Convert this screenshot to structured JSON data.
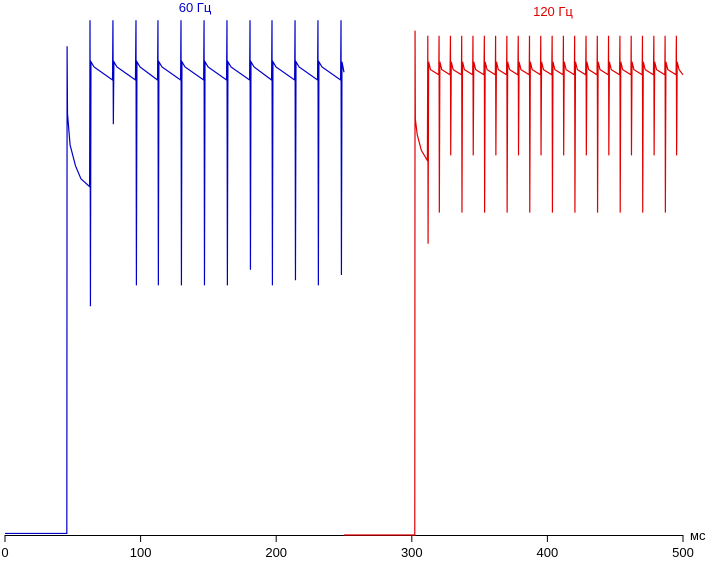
{
  "chart_data": {
    "type": "line",
    "x_label": "мс",
    "xlim": [
      0,
      500
    ],
    "xticks": [
      0,
      100,
      200,
      300,
      400,
      500
    ],
    "ylim": [
      0,
      100
    ],
    "series": [
      {
        "name": "60 Гц",
        "color": "#0000c8",
        "x": [
          0,
          45.6,
          45.8,
          46.1,
          48,
          52,
          56,
          62.4,
          62.7,
          63.0,
          63.4,
          65.7,
          79.3,
          79.6,
          79.9,
          80.3,
          82.6,
          96.2,
          96.6,
          96.9,
          97.3,
          99.6,
          112.5,
          112.8,
          113.1,
          113.5,
          115.8,
          129.5,
          129.8,
          130.1,
          130.5,
          132.8,
          146.5,
          146.8,
          147.1,
          147.5,
          149.8,
          163.4,
          163.7,
          164.0,
          164.4,
          166.7,
          180.4,
          180.7,
          181.0,
          181.4,
          183.7,
          196.6,
          196.9,
          197.2,
          197.6,
          199.9,
          213.6,
          213.9,
          214.2,
          214.6,
          216.9,
          230.5,
          230.8,
          231.1,
          231.5,
          233.8,
          247.5,
          247.8,
          248.1,
          248.5,
          250
        ],
        "values": [
          0.3,
          0.3,
          94,
          81,
          75,
          71,
          68.5,
          67,
          99,
          44,
          91,
          90,
          87.5,
          99,
          79,
          91,
          90,
          87.5,
          99,
          48,
          91,
          90,
          87.5,
          99,
          48,
          91,
          90,
          87.5,
          99,
          48,
          91,
          90,
          87.5,
          99,
          48,
          91,
          90,
          87.5,
          99,
          48,
          91,
          90,
          87.5,
          99,
          51,
          91,
          90,
          87.5,
          99,
          48,
          91,
          90,
          87.5,
          99,
          49,
          91,
          90,
          87.5,
          99,
          48,
          91,
          90,
          87.5,
          99,
          50,
          91,
          89
        ]
      },
      {
        "name": "120 Гц",
        "color": "#e00000",
        "x": [
          250,
          302.2,
          302.4,
          302.6,
          304,
          307,
          311.5,
          311.8,
          312.0,
          312.4,
          313.8,
          319.9,
          320.1,
          320.3,
          320.7,
          322.1,
          328.2,
          328.5,
          328.7,
          329.1,
          330.5,
          336.6,
          336.8,
          337.0,
          337.4,
          338.8,
          344.9,
          345.1,
          345.3,
          345.7,
          347.1,
          353.2,
          353.5,
          353.7,
          354.1,
          355.5,
          361.6,
          361.8,
          362.0,
          362.4,
          363.8,
          369.9,
          370.1,
          370.3,
          370.7,
          372.1,
          378.2,
          378.5,
          378.7,
          379.1,
          380.5,
          386.6,
          386.8,
          387.0,
          387.4,
          388.8,
          394.9,
          395.1,
          395.3,
          395.7,
          397.1,
          403.2,
          403.5,
          403.7,
          404.1,
          405.5,
          411.6,
          411.8,
          412.0,
          412.4,
          413.8,
          419.9,
          420.1,
          420.3,
          420.7,
          422.1,
          428.2,
          428.5,
          428.7,
          429.1,
          430.5,
          436.6,
          436.8,
          437.0,
          437.4,
          438.8,
          444.9,
          445.1,
          445.3,
          445.7,
          447.1,
          453.2,
          453.5,
          453.7,
          454.1,
          455.5,
          461.6,
          461.8,
          462.0,
          462.4,
          463.8,
          469.9,
          470.1,
          470.3,
          470.7,
          472.1,
          478.2,
          478.5,
          478.7,
          479.1,
          480.5,
          486.6,
          486.8,
          487.0,
          487.4,
          488.8,
          494.9,
          495.1,
          495.3,
          495.7,
          497.1,
          500
        ],
        "values": [
          0,
          0,
          97,
          80,
          77,
          74,
          72,
          96,
          56,
          91,
          89.5,
          88.5,
          96,
          62,
          91,
          89.5,
          88.5,
          96,
          73,
          91,
          89.5,
          88.5,
          96,
          62,
          91,
          89.5,
          88.5,
          96,
          73,
          91,
          89.5,
          88.5,
          96,
          62,
          91,
          89.5,
          88.5,
          96,
          73,
          91,
          89.5,
          88.5,
          96,
          62,
          91,
          89.5,
          88.5,
          96,
          73,
          91,
          89.5,
          88.5,
          96,
          62,
          91,
          89.5,
          88.5,
          96,
          73,
          91,
          89.5,
          88.5,
          96,
          62,
          91,
          89.5,
          88.5,
          96,
          73,
          91,
          89.5,
          88.5,
          96,
          62,
          91,
          89.5,
          88.5,
          96,
          73,
          91,
          89.5,
          88.5,
          96,
          62,
          91,
          89.5,
          88.5,
          96,
          73,
          91,
          89.5,
          88.5,
          96,
          62,
          91,
          89.5,
          88.5,
          96,
          73,
          91,
          89.5,
          88.5,
          96,
          62,
          91,
          89.5,
          88.5,
          96,
          73,
          91,
          89.5,
          88.5,
          96,
          62,
          91,
          89.5,
          88.5,
          96,
          73,
          91,
          89.5,
          88.5
        ]
      }
    ]
  }
}
